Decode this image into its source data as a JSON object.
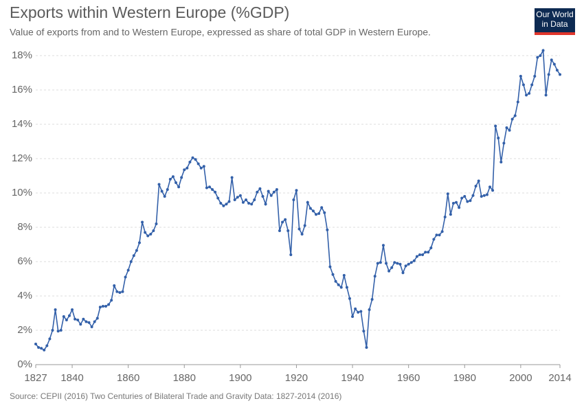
{
  "chart_data": {
    "type": "line",
    "title": "Exports within Western Europe (%GDP)",
    "subtitle": "Value of exports from and to Western Europe, expressed as share of total GDP in Western Europe.",
    "source": "Source: CEPII (2016) Two Centuries of Bilateral Trade and Gravity Data: 1827-2014 (2016)",
    "logo": [
      "Our World",
      "in Data"
    ],
    "color": "#3360a9",
    "grid": true,
    "xlim": [
      1827,
      2014
    ],
    "ylim": [
      0,
      18.5
    ],
    "xticks": [
      1827,
      1840,
      1860,
      1880,
      1900,
      1920,
      1940,
      1960,
      1980,
      2000,
      2014
    ],
    "yticks": [
      {
        "value": 0,
        "label": "0%"
      },
      {
        "value": 2,
        "label": "2%"
      },
      {
        "value": 4,
        "label": "4%"
      },
      {
        "value": 6,
        "label": "6%"
      },
      {
        "value": 8,
        "label": "8%"
      },
      {
        "value": 10,
        "label": "10%"
      },
      {
        "value": 12,
        "label": "12%"
      },
      {
        "value": 14,
        "label": "14%"
      },
      {
        "value": 16,
        "label": "16%"
      },
      {
        "value": 18,
        "label": "18%"
      }
    ],
    "x": [
      1827,
      1828,
      1829,
      1830,
      1831,
      1832,
      1833,
      1834,
      1835,
      1836,
      1837,
      1838,
      1839,
      1840,
      1841,
      1842,
      1843,
      1844,
      1845,
      1846,
      1847,
      1848,
      1849,
      1850,
      1851,
      1852,
      1853,
      1854,
      1855,
      1856,
      1857,
      1858,
      1859,
      1860,
      1861,
      1862,
      1863,
      1864,
      1865,
      1866,
      1867,
      1868,
      1869,
      1870,
      1871,
      1872,
      1873,
      1874,
      1875,
      1876,
      1877,
      1878,
      1879,
      1880,
      1881,
      1882,
      1883,
      1884,
      1885,
      1886,
      1887,
      1888,
      1889,
      1890,
      1891,
      1892,
      1893,
      1894,
      1895,
      1896,
      1897,
      1898,
      1899,
      1900,
      1901,
      1902,
      1903,
      1904,
      1905,
      1906,
      1907,
      1908,
      1909,
      1910,
      1911,
      1912,
      1913,
      1914,
      1915,
      1916,
      1917,
      1918,
      1919,
      1920,
      1921,
      1922,
      1923,
      1924,
      1925,
      1926,
      1927,
      1928,
      1929,
      1930,
      1931,
      1932,
      1933,
      1934,
      1935,
      1936,
      1937,
      1938,
      1939,
      1940,
      1941,
      1942,
      1943,
      1944,
      1945,
      1946,
      1947,
      1948,
      1949,
      1950,
      1951,
      1952,
      1953,
      1954,
      1955,
      1956,
      1957,
      1958,
      1959,
      1960,
      1961,
      1962,
      1963,
      1964,
      1965,
      1966,
      1967,
      1968,
      1969,
      1970,
      1971,
      1972,
      1973,
      1974,
      1975,
      1976,
      1977,
      1978,
      1979,
      1980,
      1981,
      1982,
      1983,
      1984,
      1985,
      1986,
      1987,
      1988,
      1989,
      1990,
      1991,
      1992,
      1993,
      1994,
      1995,
      1996,
      1997,
      1998,
      1999,
      2000,
      2001,
      2002,
      2003,
      2004,
      2005,
      2006,
      2007,
      2008,
      2009,
      2010,
      2011,
      2012,
      2013,
      2014
    ],
    "values": [
      1.2,
      1.0,
      0.95,
      0.85,
      1.1,
      1.5,
      2.0,
      3.2,
      1.95,
      2.0,
      2.8,
      2.6,
      2.85,
      3.2,
      2.65,
      2.6,
      2.35,
      2.65,
      2.5,
      2.45,
      2.2,
      2.5,
      2.7,
      3.35,
      3.4,
      3.4,
      3.5,
      3.75,
      4.6,
      4.25,
      4.2,
      4.25,
      5.1,
      5.5,
      6.0,
      6.35,
      6.65,
      7.1,
      8.3,
      7.7,
      7.5,
      7.6,
      7.8,
      8.2,
      10.5,
      10.1,
      9.8,
      10.2,
      10.8,
      10.95,
      10.6,
      10.35,
      10.9,
      11.35,
      11.45,
      11.8,
      12.05,
      11.95,
      11.7,
      11.45,
      11.55,
      10.3,
      10.35,
      10.2,
      10.05,
      9.7,
      9.4,
      9.25,
      9.35,
      9.5,
      10.9,
      9.6,
      9.75,
      9.85,
      9.45,
      9.6,
      9.4,
      9.35,
      9.6,
      10.05,
      10.25,
      9.8,
      9.35,
      10.1,
      9.85,
      10.05,
      10.2,
      7.8,
      8.3,
      8.45,
      7.8,
      6.4,
      9.6,
      10.15,
      7.9,
      7.6,
      8.1,
      9.45,
      9.1,
      8.95,
      8.75,
      8.8,
      9.15,
      8.85,
      7.85,
      5.7,
      5.25,
      4.85,
      4.65,
      4.5,
      5.2,
      4.5,
      3.85,
      2.8,
      3.25,
      3.05,
      3.1,
      1.95,
      1.0,
      3.2,
      3.8,
      5.15,
      5.9,
      5.95,
      6.95,
      5.9,
      5.45,
      5.65,
      5.95,
      5.9,
      5.85,
      5.35,
      5.75,
      5.85,
      5.95,
      6.05,
      6.3,
      6.4,
      6.4,
      6.55,
      6.55,
      6.8,
      7.3,
      7.55,
      7.55,
      7.75,
      8.6,
      9.95,
      8.75,
      9.4,
      9.45,
      9.15,
      9.7,
      9.8,
      9.5,
      9.55,
      9.85,
      10.4,
      10.7,
      9.8,
      9.85,
      9.9,
      10.35,
      10.15,
      13.9,
      13.2,
      11.8,
      12.9,
      13.8,
      13.65,
      14.3,
      14.5,
      15.3,
      16.8,
      16.3,
      15.7,
      15.8,
      16.3,
      16.8,
      17.9,
      18.0,
      18.3,
      15.7,
      16.9,
      17.75,
      17.5,
      17.15,
      16.9
    ]
  }
}
